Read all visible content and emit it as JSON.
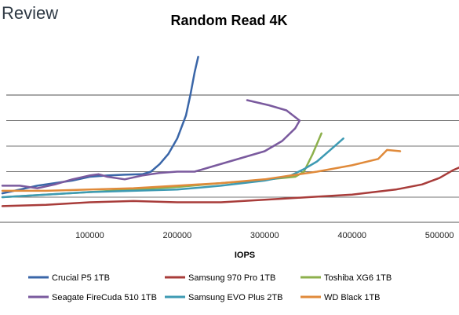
{
  "brand": {
    "text": "Review"
  },
  "chart_data": {
    "type": "line",
    "title": "Random Read 4K",
    "xlabel": "IOPS",
    "ylabel": "",
    "xlim": [
      0,
      525000
    ],
    "ylim": [
      0,
      5
    ],
    "x_ticks": [
      100000,
      200000,
      300000,
      400000,
      500000
    ],
    "x_tick_labels": [
      "100000",
      "200000",
      "300000",
      "400000",
      "500000"
    ],
    "y_gridlines": [
      1,
      2,
      3,
      4,
      5
    ],
    "grid": true,
    "legend_position": "bottom",
    "series": [
      {
        "name": "Crucial P5 1TB",
        "color": "#3a66a8",
        "points": [
          [
            0,
            0.15
          ],
          [
            20000,
            0.3
          ],
          [
            40000,
            0.45
          ],
          [
            60000,
            0.55
          ],
          [
            80000,
            0.65
          ],
          [
            100000,
            0.8
          ],
          [
            120000,
            0.85
          ],
          [
            140000,
            0.88
          ],
          [
            160000,
            0.9
          ],
          [
            170000,
            1.0
          ],
          [
            180000,
            1.3
          ],
          [
            190000,
            1.7
          ],
          [
            200000,
            2.3
          ],
          [
            210000,
            3.2
          ],
          [
            215000,
            4.0
          ],
          [
            220000,
            4.9
          ],
          [
            224000,
            5.5
          ]
        ]
      },
      {
        "name": "Samsung 970 Pro 1TB",
        "color": "#a83c3a",
        "points": [
          [
            0,
            -0.35
          ],
          [
            50000,
            -0.3
          ],
          [
            100000,
            -0.2
          ],
          [
            150000,
            -0.15
          ],
          [
            200000,
            -0.2
          ],
          [
            250000,
            -0.2
          ],
          [
            300000,
            -0.1
          ],
          [
            350000,
            0.0
          ],
          [
            400000,
            0.1
          ],
          [
            450000,
            0.3
          ],
          [
            480000,
            0.5
          ],
          [
            500000,
            0.75
          ],
          [
            515000,
            1.05
          ],
          [
            525000,
            1.2
          ]
        ]
      },
      {
        "name": "Toshiba XG6 1TB",
        "color": "#8db04c",
        "points": [
          [
            0,
            0.0
          ],
          [
            50000,
            0.1
          ],
          [
            100000,
            0.2
          ],
          [
            150000,
            0.3
          ],
          [
            200000,
            0.4
          ],
          [
            250000,
            0.55
          ],
          [
            290000,
            0.65
          ],
          [
            320000,
            0.75
          ],
          [
            335000,
            0.8
          ],
          [
            345000,
            1.0
          ],
          [
            355000,
            1.7
          ],
          [
            365000,
            2.5
          ]
        ]
      },
      {
        "name": "Seagate FireCuda 510 1TB",
        "color": "#7a5a9e",
        "points": [
          [
            0,
            0.45
          ],
          [
            20000,
            0.45
          ],
          [
            40000,
            0.35
          ],
          [
            60000,
            0.5
          ],
          [
            80000,
            0.7
          ],
          [
            100000,
            0.85
          ],
          [
            110000,
            0.9
          ],
          [
            120000,
            0.8
          ],
          [
            140000,
            0.7
          ],
          [
            160000,
            0.85
          ],
          [
            180000,
            0.95
          ],
          [
            200000,
            1.0
          ],
          [
            220000,
            1.0
          ],
          [
            240000,
            1.2
          ],
          [
            260000,
            1.4
          ],
          [
            280000,
            1.6
          ],
          [
            300000,
            1.8
          ],
          [
            320000,
            2.2
          ],
          [
            335000,
            2.7
          ],
          [
            340000,
            3.0
          ],
          [
            325000,
            3.4
          ],
          [
            305000,
            3.6
          ],
          [
            280000,
            3.8
          ]
        ]
      },
      {
        "name": "Samsung EVO Plus 2TB",
        "color": "#3d9ab3",
        "points": [
          [
            0,
            0.0
          ],
          [
            50000,
            0.1
          ],
          [
            100000,
            0.2
          ],
          [
            150000,
            0.25
          ],
          [
            200000,
            0.3
          ],
          [
            250000,
            0.45
          ],
          [
            300000,
            0.65
          ],
          [
            330000,
            0.85
          ],
          [
            345000,
            1.1
          ],
          [
            360000,
            1.4
          ],
          [
            375000,
            1.85
          ],
          [
            390000,
            2.3
          ]
        ]
      },
      {
        "name": "WD Black 1TB",
        "color": "#e08a3a",
        "points": [
          [
            0,
            0.25
          ],
          [
            50000,
            0.25
          ],
          [
            100000,
            0.3
          ],
          [
            150000,
            0.35
          ],
          [
            200000,
            0.45
          ],
          [
            250000,
            0.55
          ],
          [
            300000,
            0.7
          ],
          [
            330000,
            0.85
          ],
          [
            360000,
            1.0
          ],
          [
            400000,
            1.25
          ],
          [
            430000,
            1.5
          ],
          [
            440000,
            1.85
          ],
          [
            455000,
            1.8
          ]
        ]
      }
    ]
  }
}
